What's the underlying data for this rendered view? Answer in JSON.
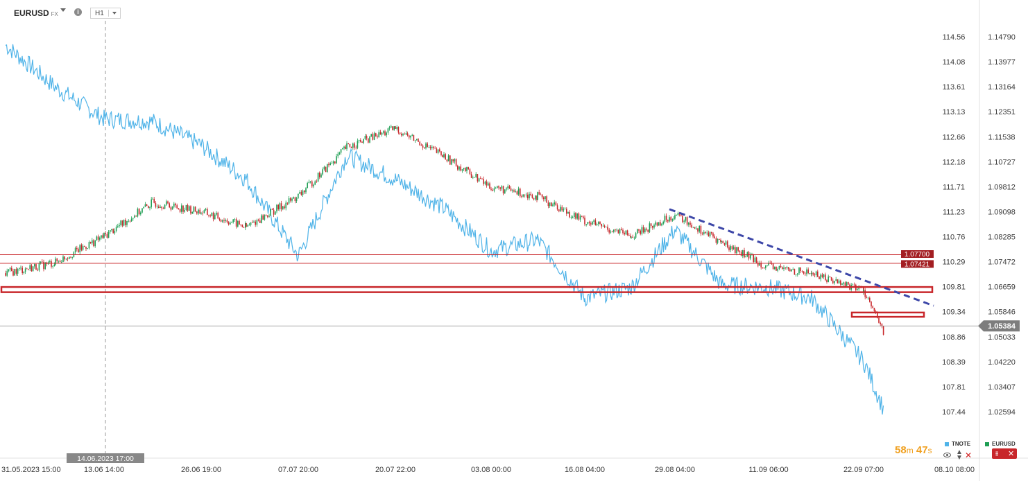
{
  "header": {
    "symbol": "EURUSD",
    "symbol_type": "FX",
    "info_icon": "info-icon",
    "timeframe": "H1"
  },
  "timer": {
    "minutes": "58",
    "minutes_unit": "m",
    "seconds": "47",
    "seconds_unit": "s"
  },
  "legend": [
    {
      "name": "TNOTE",
      "color": "#4fb3e8"
    },
    {
      "name": "EURUSD",
      "color": "#1e9e54"
    }
  ],
  "colors": {
    "tnote": "#4fb3e8",
    "candle_up": "#1e9e54",
    "candle_down": "#c8262a",
    "levels": "#c8262a",
    "trendline": "#3d47a8",
    "price_tag": "#7d7d7d"
  },
  "chart_data": {
    "type": "line",
    "title": "",
    "x_ticks": [
      "31.05.2023 15:00",
      "13.06 14:00",
      "26.06 19:00",
      "07.07 20:00",
      "20.07 22:00",
      "03.08 00:00",
      "16.08 04:00",
      "29.08 04:00",
      "11.09 06:00",
      "22.09 07:00",
      "08.10 08:00"
    ],
    "crosshair_label": "14.06.2023 17:00",
    "tnote_axis": {
      "ticks": [
        "114.56",
        "114.08",
        "113.61",
        "113.13",
        "112.66",
        "112.18",
        "111.71",
        "111.23",
        "110.76",
        "110.29",
        "109.81",
        "109.34",
        "108.86",
        "108.39",
        "107.81",
        "107.44"
      ]
    },
    "eurusd_axis": {
      "ticks": [
        "1.14790",
        "1.13977",
        "1.13164",
        "1.12351",
        "1.11538",
        "1.10727",
        "1.09812",
        "1.09098",
        "1.08285",
        "1.07472",
        "1.06659",
        "1.05846",
        "1.05033",
        "1.04220",
        "1.03407",
        "1.02594"
      ],
      "range": [
        1.02594,
        1.1479
      ]
    },
    "current_price": "1.05384",
    "level_labels": [
      "1.07700",
      "1.07421"
    ],
    "series": [
      {
        "name": "EURUSD",
        "style": "candles",
        "x": [
          "31.05.2023 15:00",
          "06.06",
          "13.06 14:00",
          "20.06",
          "26.06 19:00",
          "30.06",
          "07.07 20:00",
          "13.07",
          "20.07 22:00",
          "27.07",
          "03.08 00:00",
          "09.08",
          "16.08 04:00",
          "22.08",
          "29.08 04:00",
          "05.09",
          "11.09 06:00",
          "15.09",
          "22.09 07:00",
          "26.09"
        ],
        "values": [
          1.071,
          1.0745,
          1.083,
          1.094,
          1.091,
          1.086,
          1.096,
          1.112,
          1.118,
          1.109,
          1.099,
          1.096,
          1.088,
          1.083,
          1.09,
          1.081,
          1.073,
          1.071,
          1.0655,
          1.051
        ]
      },
      {
        "name": "TNOTE",
        "style": "line",
        "x": [
          "31.05.2023 15:00",
          "06.06",
          "13.06 14:00",
          "20.06",
          "26.06 19:00",
          "30.06",
          "07.07 20:00",
          "13.07",
          "20.07 22:00",
          "27.07",
          "03.08 00:00",
          "09.08",
          "16.08 04:00",
          "22.08",
          "29.08 04:00",
          "05.09",
          "11.09 06:00",
          "15.09",
          "22.09 07:00",
          "26.09"
        ],
        "values": [
          114.4,
          113.6,
          113.0,
          112.95,
          112.5,
          111.85,
          110.4,
          112.3,
          111.85,
          111.3,
          110.5,
          110.7,
          109.6,
          109.8,
          110.9,
          109.85,
          109.8,
          109.6,
          108.4,
          107.45
        ]
      }
    ],
    "annotations": {
      "horizontal_lines": [
        1.077,
        1.07421
      ],
      "zones": [
        [
          1.0665,
          1.0648
        ]
      ],
      "trendline": {
        "from": [
          "29.08 04:00",
          1.0918
        ],
        "to": [
          "08.10 08:00",
          1.0604
        ]
      },
      "box": {
        "x_from": "22.09 07:00",
        "x_to": "05.10",
        "y": [
          1.0582,
          1.0568
        ]
      }
    }
  }
}
